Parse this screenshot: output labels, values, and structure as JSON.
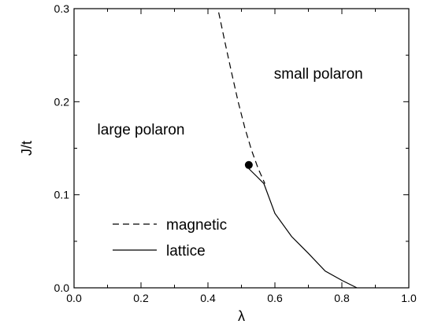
{
  "chart_data": {
    "type": "line",
    "xlabel": "λ",
    "ylabel": "J/t",
    "xlim": [
      0.0,
      1.0
    ],
    "ylim": [
      0.0,
      0.3
    ],
    "xticks": [
      "0.0",
      "0.2",
      "0.4",
      "0.6",
      "0.8",
      "1.0"
    ],
    "yticks": [
      "0.0",
      "0.1",
      "0.2",
      "0.3"
    ],
    "grid": false,
    "legend_placement": "bottom-left",
    "series": [
      {
        "name": "magnetic",
        "style": "dashed",
        "color": "#000000",
        "x": [
          0.432,
          0.45,
          0.47,
          0.49,
          0.51,
          0.53,
          0.55,
          0.57
        ],
        "y": [
          0.296,
          0.265,
          0.232,
          0.2,
          0.172,
          0.148,
          0.128,
          0.112
        ]
      },
      {
        "name": "lattice",
        "style": "solid",
        "color": "#000000",
        "x": [
          0.522,
          0.545,
          0.567,
          0.6,
          0.65,
          0.7,
          0.75,
          0.8,
          0.845
        ],
        "y": [
          0.128,
          0.12,
          0.112,
          0.08,
          0.055,
          0.037,
          0.018,
          0.008,
          0.0
        ]
      }
    ],
    "point": {
      "x": 0.522,
      "y": 0.132
    },
    "annotations": [
      {
        "text": "small polaron",
        "x": 0.73,
        "y": 0.225
      },
      {
        "text": "large polaron",
        "x": 0.2,
        "y": 0.165
      }
    ]
  }
}
